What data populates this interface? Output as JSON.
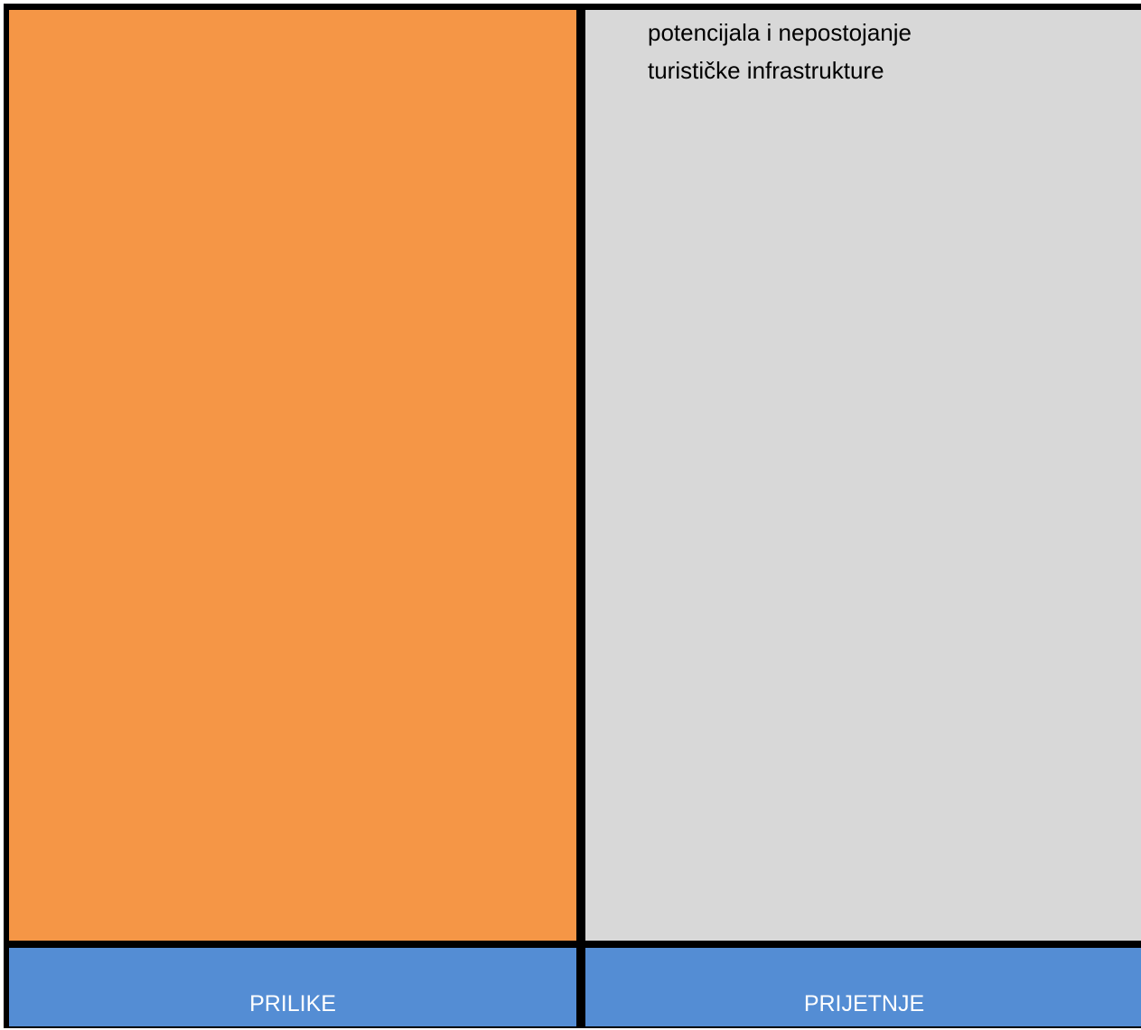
{
  "colors": {
    "grid_lines": "#000000",
    "cell_orange": "#f59646",
    "cell_grey": "#d8d8d8",
    "header_blue": "#548dd4",
    "header_text": "#ffffff"
  },
  "top_right_cell": {
    "lines": [
      "potencijala i nepostojanje",
      "turističke infrastrukture"
    ]
  },
  "bottom_row": {
    "left_label": "PRILIKE",
    "right_label": "PRIJETNJE"
  }
}
